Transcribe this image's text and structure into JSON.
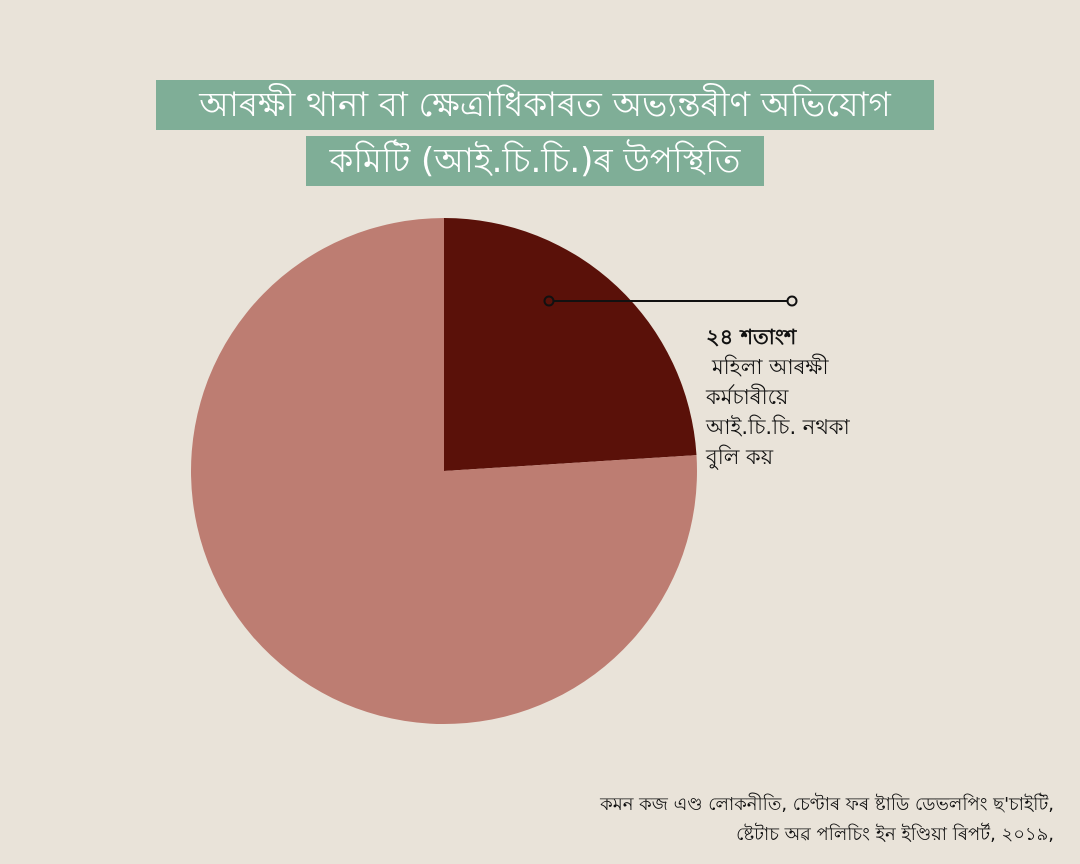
{
  "title": {
    "line1": "আৰক্ষী থানা বা ক্ষেত্ৰাধিকাৰত অভ্যন্তৰীণ অভিযোগ",
    "line2": "কমিটি (আই.চি.চি.)ৰ উপস্থিতি"
  },
  "chart_data": {
    "type": "pie",
    "slices": [
      {
        "value": 24,
        "color": "#5a1109"
      },
      {
        "value": 76,
        "color": "#bd7d72"
      }
    ],
    "annotation": {
      "value_label": "২৪ শতাংশ",
      "text_lines": [
        "মহিলা আৰক্ষী",
        "কৰ্মচাৰীয়ে",
        "আই.চি.চি. নথকা",
        "বুলি কয়"
      ]
    }
  },
  "source": {
    "line1": "কমন কজ এণ্ড লোকনীতি, চেণ্টাৰ ফৰ ষ্টাডি ডেভলপিং ছ'চাইটি,",
    "line2": "ষ্টেটাচ অৱ পলিচিং ইন ইণ্ডিয়া ৰিপৰ্ট, ২০১৯,"
  }
}
